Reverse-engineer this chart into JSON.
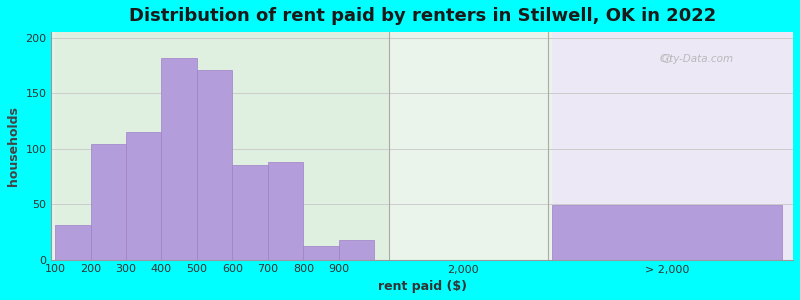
{
  "title": "Distribution of rent paid by renters in Stilwell, OK in 2022",
  "xlabel": "rent paid ($)",
  "ylabel": "households",
  "background_color": "#00FFFF",
  "bar_color": "#b39ddb",
  "bar_edge_color": "#a080c8",
  "categories": [
    "100",
    "200",
    "300",
    "400",
    "500",
    "600",
    "700",
    "800",
    "900"
  ],
  "values": [
    31,
    104,
    115,
    182,
    171,
    85,
    88,
    12,
    18
  ],
  "gt2000_value": 49,
  "ylim": [
    0,
    205
  ],
  "yticks": [
    0,
    50,
    100,
    150,
    200
  ],
  "watermark": "City-Data.com",
  "title_fontsize": 13,
  "axis_label_fontsize": 9,
  "tick_fontsize": 8
}
